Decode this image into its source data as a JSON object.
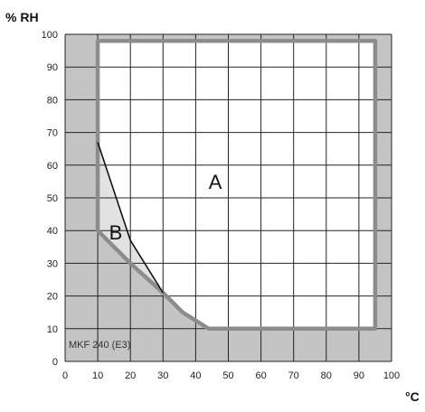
{
  "chart_data": {
    "type": "area",
    "ylabel": "% RH",
    "xlabel": "°C",
    "xlim": [
      0,
      100
    ],
    "ylim": [
      0,
      100
    ],
    "xticks": [
      0,
      10,
      20,
      30,
      40,
      50,
      60,
      70,
      80,
      90,
      100
    ],
    "yticks": [
      0,
      10,
      20,
      30,
      40,
      50,
      60,
      70,
      80,
      90,
      100
    ],
    "grid": true,
    "model_label": "MKF 240 (E3)",
    "colors": {
      "background_shade": "#c4c4c4",
      "region_a_fill": "#ffffff",
      "region_b_fill": "#e2e2e2",
      "boundary": "#8c8c8c",
      "region_b_line": "#111111",
      "grid": "#222222"
    },
    "regions": [
      {
        "label": "A",
        "label_at": {
          "x": 46,
          "y": 55
        },
        "boundary": [
          {
            "x": 10,
            "y": 98
          },
          {
            "x": 95,
            "y": 98
          },
          {
            "x": 95,
            "y": 10
          },
          {
            "x": 44,
            "y": 10
          },
          {
            "x": 36,
            "y": 15
          },
          {
            "x": 30,
            "y": 21
          },
          {
            "x": 20,
            "y": 37
          },
          {
            "x": 10,
            "y": 67
          }
        ]
      },
      {
        "label": "B",
        "label_at": {
          "x": 15.5,
          "y": 39.5
        },
        "boundary": [
          {
            "x": 10,
            "y": 67
          },
          {
            "x": 20,
            "y": 37
          },
          {
            "x": 30,
            "y": 21
          },
          {
            "x": 20,
            "y": 30
          },
          {
            "x": 10,
            "y": 40
          }
        ]
      }
    ],
    "outer_boundary": [
      {
        "x": 10,
        "y": 98
      },
      {
        "x": 95,
        "y": 98
      },
      {
        "x": 95,
        "y": 10
      },
      {
        "x": 44,
        "y": 10
      },
      {
        "x": 36,
        "y": 15
      },
      {
        "x": 30,
        "y": 21
      },
      {
        "x": 20,
        "y": 30
      },
      {
        "x": 10,
        "y": 40
      },
      {
        "x": 10,
        "y": 98
      }
    ],
    "region_b_upper_line": [
      {
        "x": 10,
        "y": 67
      },
      {
        "x": 20,
        "y": 37
      },
      {
        "x": 30,
        "y": 21
      }
    ]
  }
}
